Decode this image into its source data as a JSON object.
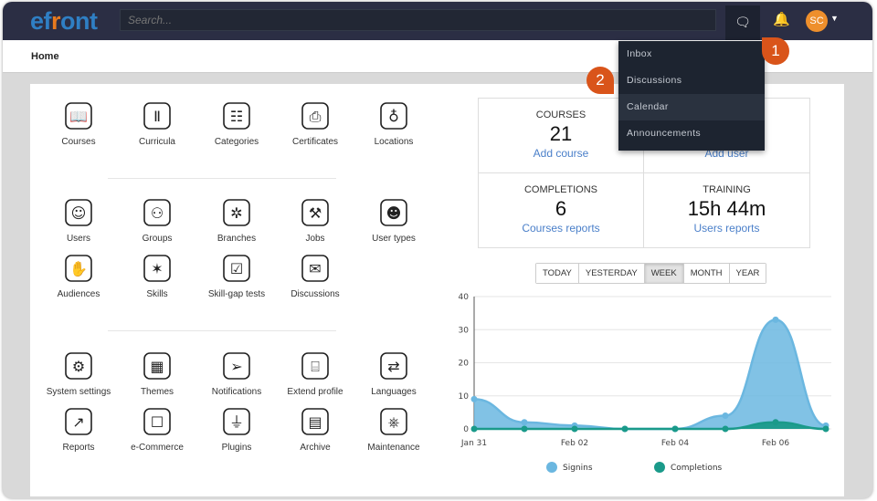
{
  "header": {
    "logo": "efront",
    "search_placeholder": "Search...",
    "avatar_initials": "SC",
    "icons": [
      "chat-icon",
      "bell-icon",
      "caret-down-icon"
    ]
  },
  "breadcrumb": "Home",
  "tiles": [
    {
      "label": "Courses",
      "icon": "book-icon"
    },
    {
      "label": "Curricula",
      "icon": "bookshelf-icon"
    },
    {
      "label": "Categories",
      "icon": "hierarchy-icon"
    },
    {
      "label": "Certificates",
      "icon": "certificate-icon"
    },
    {
      "label": "Locations",
      "icon": "globe-icon"
    },
    {
      "label": "Users",
      "icon": "user-icon"
    },
    {
      "label": "Groups",
      "icon": "group-icon"
    },
    {
      "label": "Branches",
      "icon": "branches-icon"
    },
    {
      "label": "Jobs",
      "icon": "worker-icon"
    },
    {
      "label": "User types",
      "icon": "user-type-icon"
    },
    {
      "label": "Audiences",
      "icon": "raised-hands-icon"
    },
    {
      "label": "Skills",
      "icon": "magic-wand-icon"
    },
    {
      "label": "Skill-gap tests",
      "icon": "checklist-icon"
    },
    {
      "label": "Discussions",
      "icon": "discussion-icon"
    },
    {
      "label": "System settings",
      "icon": "gear-icon"
    },
    {
      "label": "Themes",
      "icon": "blueprint-icon"
    },
    {
      "label": "Notifications",
      "icon": "paper-plane-icon"
    },
    {
      "label": "Extend profile",
      "icon": "id-card-icon"
    },
    {
      "label": "Languages",
      "icon": "translate-icon"
    },
    {
      "label": "Reports",
      "icon": "chart-icon"
    },
    {
      "label": "e-Commerce",
      "icon": "cart-icon"
    },
    {
      "label": "Plugins",
      "icon": "plug-icon"
    },
    {
      "label": "Archive",
      "icon": "archive-icon"
    },
    {
      "label": "Maintenance",
      "icon": "lifebuoy-icon"
    }
  ],
  "stats": [
    {
      "title": "COURSES",
      "value": "21",
      "link": "Add course"
    },
    {
      "title": "",
      "value": "",
      "link": "Add user"
    },
    {
      "title": "COMPLETIONS",
      "value": "6",
      "link": "Courses reports"
    },
    {
      "title": "TRAINING",
      "value": "15h 44m",
      "link": "Users reports"
    }
  ],
  "ranges": [
    "TODAY",
    "YESTERDAY",
    "WEEK",
    "MONTH",
    "YEAR"
  ],
  "active_range": "WEEK",
  "dropdown": {
    "items": [
      "Inbox",
      "Discussions",
      "Calendar",
      "Announcements"
    ],
    "highlighted": "Calendar"
  },
  "callouts": [
    "1",
    "2"
  ],
  "chart_data": {
    "type": "area",
    "x": [
      "Jan 31",
      "Feb 01",
      "Feb 02",
      "Feb 03",
      "Feb 04",
      "Feb 05",
      "Feb 06",
      "Feb 07"
    ],
    "xticks": [
      "Jan 31",
      "Feb 02",
      "Feb 04",
      "Feb 06"
    ],
    "yticks": [
      "0",
      "10",
      "20",
      "30",
      "40"
    ],
    "ylim": [
      0,
      40
    ],
    "grid": true,
    "legend": "bottom",
    "series": [
      {
        "name": "Signins",
        "color": "#6bb7e0",
        "values": [
          9,
          2,
          1,
          0,
          0,
          4,
          33,
          1
        ]
      },
      {
        "name": "Completions",
        "color": "#1a9a8a",
        "values": [
          0,
          0,
          0,
          0,
          0,
          0,
          2,
          0
        ]
      }
    ]
  },
  "colors": {
    "topbar": "#2b2e44",
    "accent": "#d9541a",
    "link": "#4a7fc9"
  }
}
